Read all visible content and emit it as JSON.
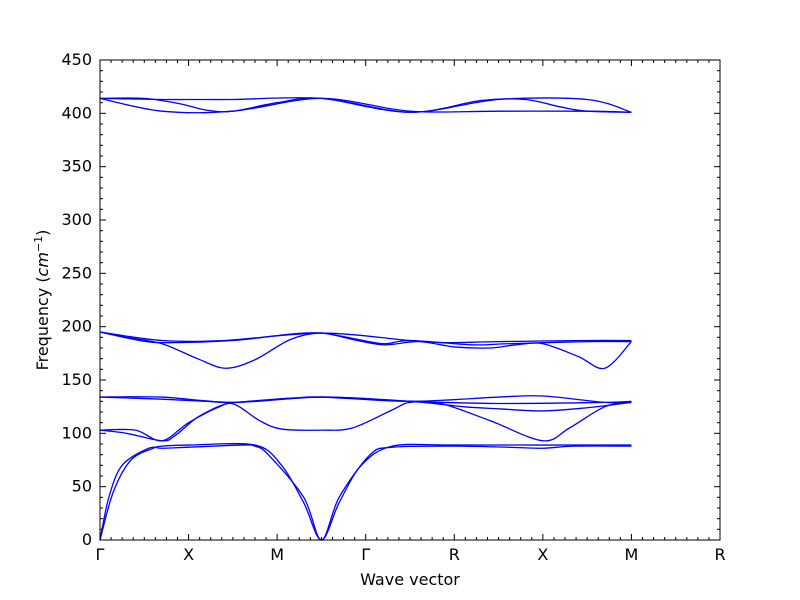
{
  "chart_data": {
    "type": "line",
    "title": "",
    "xlabel": "Wave vector",
    "ylabel": "Frequency (cm^{-1})",
    "ylabel_base": "Frequency (",
    "ylabel_unit": "cm",
    "ylabel_exp": "−1",
    "ylabel_close": ")",
    "ylim": [
      0,
      450
    ],
    "yticks": [
      0,
      50,
      100,
      150,
      200,
      250,
      300,
      350,
      400,
      450
    ],
    "grid": false,
    "line_color": "#0000ff",
    "x_tick_labels": [
      "Γ",
      "X",
      "M",
      "Γ",
      "R",
      "X",
      "M",
      "R"
    ],
    "series": [
      {
        "values": [
          [
            0,
            0
          ],
          [
            0.1,
            40
          ],
          [
            0.25,
            70
          ],
          [
            0.55,
            86
          ],
          [
            0.7,
            86
          ],
          [
            1,
            87
          ],
          [
            1.6,
            89
          ],
          [
            1.75,
            88
          ],
          [
            1.9,
            80
          ],
          [
            2.3,
            40
          ],
          [
            2.5,
            0
          ],
          [
            2.7,
            40
          ],
          [
            3.05,
            80
          ],
          [
            3.3,
            87
          ],
          [
            4,
            88
          ],
          [
            4.6,
            87
          ],
          [
            5,
            86
          ],
          [
            5.35,
            88
          ],
          [
            6,
            88
          ]
        ]
      },
      {
        "values": [
          [
            0,
            0
          ],
          [
            0.15,
            45
          ],
          [
            0.35,
            75
          ],
          [
            0.6,
            86
          ],
          [
            0.7,
            88
          ],
          [
            1,
            89
          ],
          [
            1.75,
            89
          ],
          [
            2.05,
            70
          ],
          [
            2.3,
            35
          ],
          [
            2.5,
            0
          ],
          [
            2.7,
            35
          ],
          [
            2.95,
            70
          ],
          [
            3.3,
            88
          ],
          [
            4,
            89
          ],
          [
            5,
            89
          ],
          [
            6,
            89
          ]
        ]
      },
      {
        "values": [
          [
            0,
            103
          ],
          [
            0.3,
            100
          ],
          [
            0.7,
            93
          ],
          [
            0.85,
            98
          ],
          [
            1.1,
            115
          ],
          [
            1.4,
            127
          ],
          [
            1.55,
            126
          ],
          [
            1.8,
            112
          ],
          [
            2.05,
            104
          ],
          [
            2.5,
            103
          ],
          [
            2.85,
            105
          ],
          [
            3.3,
            122
          ],
          [
            3.5,
            129
          ],
          [
            3.85,
            128
          ],
          [
            4.4,
            112
          ],
          [
            5,
            93
          ],
          [
            5.3,
            105
          ],
          [
            5.7,
            125
          ],
          [
            6,
            129
          ]
        ]
      },
      {
        "values": [
          [
            0,
            103
          ],
          [
            0.4,
            103
          ],
          [
            0.7,
            93
          ],
          [
            1,
            110
          ],
          [
            1.35,
            125
          ],
          [
            1.55,
            129
          ],
          [
            2.5,
            134
          ],
          [
            3.5,
            130
          ],
          [
            4.1,
            125
          ],
          [
            4.5,
            123
          ],
          [
            5,
            121
          ],
          [
            5.5,
            124
          ],
          [
            5.9,
            128
          ],
          [
            6,
            129
          ]
        ]
      },
      {
        "values": [
          [
            0,
            134
          ],
          [
            0.7,
            132
          ],
          [
            1.2,
            130
          ],
          [
            1.5,
            129
          ],
          [
            2.2,
            133
          ],
          [
            2.5,
            134
          ],
          [
            3.5,
            130
          ],
          [
            4.5,
            134
          ],
          [
            5,
            135
          ],
          [
            5.7,
            129
          ],
          [
            6,
            129
          ]
        ]
      },
      {
        "values": [
          [
            0,
            134
          ],
          [
            0.7,
            134
          ],
          [
            1.5,
            129
          ],
          [
            2.5,
            134
          ],
          [
            3.5,
            130
          ],
          [
            4.5,
            128
          ],
          [
            5.7,
            129
          ],
          [
            6,
            130
          ]
        ]
      },
      {
        "values": [
          [
            0,
            195
          ],
          [
            0.3,
            190
          ],
          [
            0.7,
            184
          ],
          [
            1.1,
            170
          ],
          [
            1.42,
            161
          ],
          [
            1.75,
            169
          ],
          [
            2.15,
            188
          ],
          [
            2.5,
            194
          ],
          [
            2.85,
            188
          ],
          [
            3.2,
            183
          ],
          [
            3.6,
            186
          ],
          [
            4,
            181
          ],
          [
            4.4,
            180
          ],
          [
            4.7,
            183
          ],
          [
            5,
            184
          ],
          [
            5.4,
            172
          ],
          [
            5.7,
            161
          ],
          [
            6,
            186
          ]
        ]
      },
      {
        "values": [
          [
            0,
            195
          ],
          [
            0.45,
            187
          ],
          [
            0.75,
            185
          ],
          [
            1.5,
            187
          ],
          [
            2.15,
            193
          ],
          [
            2.5,
            194
          ],
          [
            2.85,
            189
          ],
          [
            3.2,
            184
          ],
          [
            3.5,
            187
          ],
          [
            4.2,
            183
          ],
          [
            4.6,
            184
          ],
          [
            5.5,
            186
          ],
          [
            6,
            186
          ]
        ]
      },
      {
        "values": [
          [
            0,
            195
          ],
          [
            0.7,
            187
          ],
          [
            1.4,
            187
          ],
          [
            2.5,
            194
          ],
          [
            3.5,
            187
          ],
          [
            3.9,
            185
          ],
          [
            4.5,
            186
          ],
          [
            5.5,
            187
          ],
          [
            6,
            187
          ]
        ]
      },
      {
        "values": [
          [
            0,
            414
          ],
          [
            0.7,
            413
          ],
          [
            1.1,
            413
          ],
          [
            1.5,
            413
          ],
          [
            2.5,
            414
          ],
          [
            3.5,
            401
          ],
          [
            4.3,
            412
          ],
          [
            4.8,
            413
          ],
          [
            5.2,
            406
          ],
          [
            5.5,
            402
          ],
          [
            6,
            401
          ]
        ]
      },
      {
        "values": [
          [
            0,
            414
          ],
          [
            0.5,
            414
          ],
          [
            0.9,
            409
          ],
          [
            1.2,
            403
          ],
          [
            1.5,
            402
          ],
          [
            2,
            410
          ],
          [
            2.5,
            414
          ],
          [
            3.5,
            401
          ],
          [
            4.5,
            413
          ],
          [
            5.5,
            413
          ],
          [
            6,
            401
          ]
        ]
      },
      {
        "values": [
          [
            0,
            414
          ],
          [
            0.7,
            402
          ],
          [
            1.5,
            402
          ],
          [
            2.5,
            414
          ],
          [
            3.5,
            402
          ],
          [
            4.5,
            402
          ],
          [
            5.5,
            402
          ],
          [
            6,
            401
          ]
        ]
      }
    ]
  }
}
